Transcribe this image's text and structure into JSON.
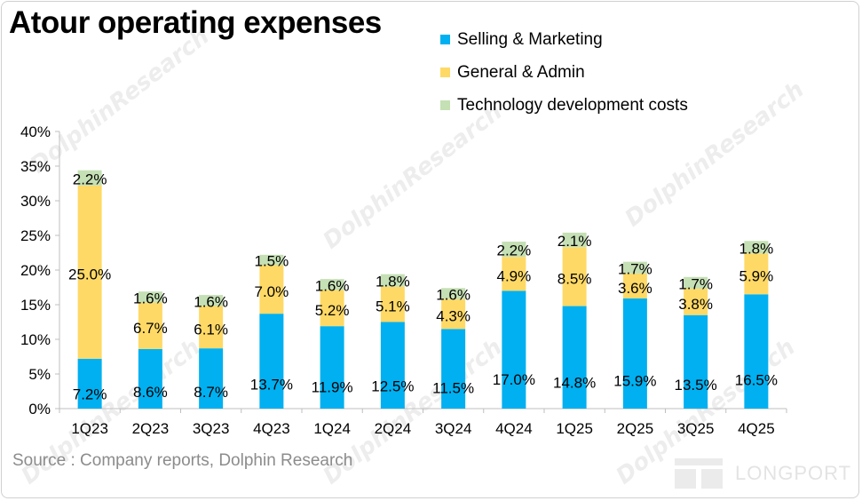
{
  "title": "Atour operating expenses",
  "source": "Source : Company reports, Dolphin Research",
  "watermark": "DolphinResearch",
  "logo_text": "LONGPORT",
  "colors": {
    "selling": "#00b0f0",
    "admin": "#ffd966",
    "tech": "#c5e0b4",
    "axis": "#bfbfbf"
  },
  "chart_data": {
    "type": "bar",
    "stacked": true,
    "categories": [
      "1Q23",
      "2Q23",
      "3Q23",
      "4Q23",
      "1Q24",
      "2Q24",
      "3Q24",
      "4Q24",
      "1Q25",
      "2Q25",
      "3Q25",
      "4Q25"
    ],
    "series": [
      {
        "name": "Selling & Marketing",
        "values": [
          7.2,
          8.6,
          8.7,
          13.7,
          11.9,
          12.5,
          11.5,
          17.0,
          14.8,
          15.9,
          13.5,
          16.5
        ],
        "labels": [
          "7.2%",
          "8.6%",
          "8.7%",
          "13.7%",
          "11.9%",
          "12.5%",
          "11.5%",
          "17.0%",
          "14.8%",
          "15.9%",
          "13.5%",
          "16.5%"
        ]
      },
      {
        "name": "General & Admin",
        "values": [
          25.0,
          6.7,
          6.1,
          7.0,
          5.2,
          5.1,
          4.3,
          4.9,
          8.5,
          3.6,
          3.8,
          5.9
        ],
        "labels": [
          "25.0%",
          "6.7%",
          "6.1%",
          "7.0%",
          "5.2%",
          "5.1%",
          "4.3%",
          "4.9%",
          "8.5%",
          "3.6%",
          "3.8%",
          "5.9%"
        ]
      },
      {
        "name": "Technology development costs",
        "values": [
          2.2,
          1.6,
          1.6,
          1.5,
          1.6,
          1.8,
          1.6,
          2.2,
          2.1,
          1.7,
          1.7,
          1.8
        ],
        "labels": [
          "2.2%",
          "1.6%",
          "1.6%",
          "1.5%",
          "1.6%",
          "1.8%",
          "1.6%",
          "2.2%",
          "2.1%",
          "1.7%",
          "1.7%",
          "1.8%"
        ]
      }
    ],
    "yticks": [
      "0%",
      "5%",
      "10%",
      "15%",
      "20%",
      "25%",
      "30%",
      "35%",
      "40%"
    ],
    "ylim": [
      0,
      40
    ],
    "legend": "top-right"
  }
}
